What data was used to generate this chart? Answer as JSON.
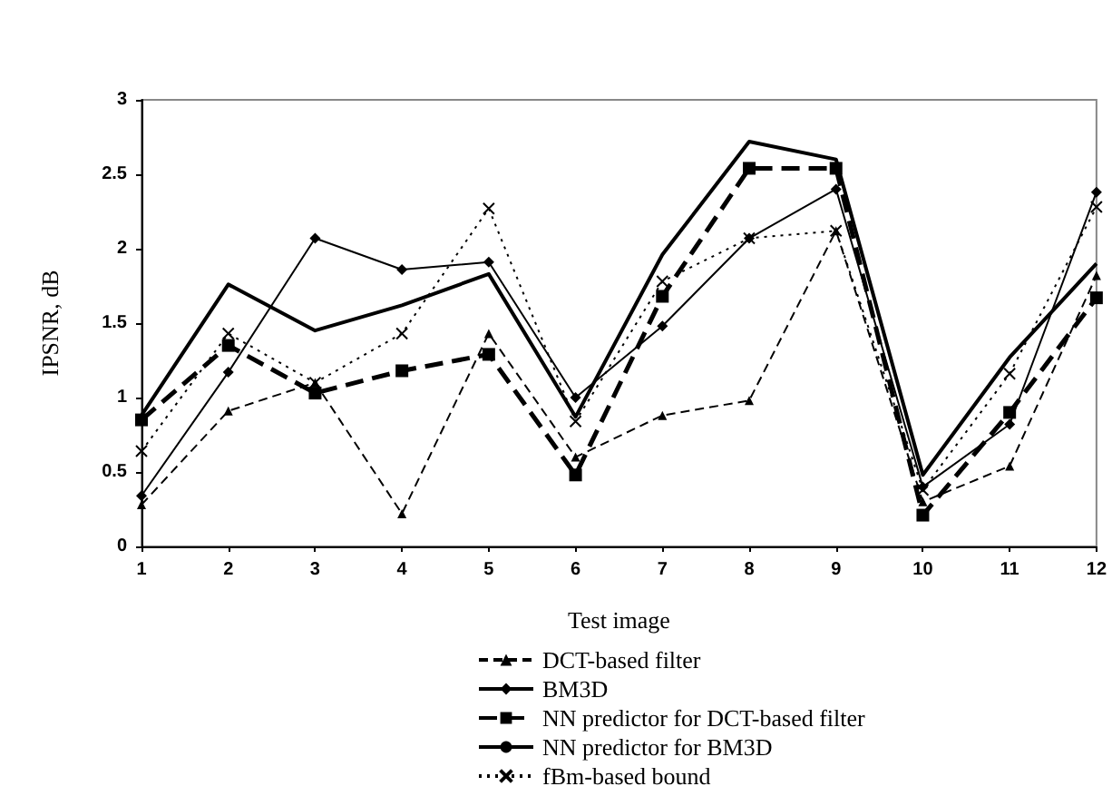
{
  "chart_data": {
    "type": "line",
    "xlabel": "Test image",
    "ylabel": "IPSNR, dB",
    "x": [
      1,
      2,
      3,
      4,
      5,
      6,
      7,
      8,
      9,
      10,
      11,
      12
    ],
    "xlim": [
      1,
      12
    ],
    "xticks": [
      1,
      2,
      3,
      4,
      5,
      6,
      7,
      8,
      9,
      10,
      11,
      12
    ],
    "ylim": [
      0,
      3
    ],
    "yticks": [
      0,
      0.5,
      1,
      1.5,
      2,
      2.5,
      3
    ],
    "grid": false,
    "legend": "bottom",
    "series": [
      {
        "name": "DCT-based filter",
        "color": "#000000",
        "marker": "triangle",
        "line_style": "dashed",
        "values": [
          0.28,
          0.91,
          1.1,
          0.22,
          1.43,
          0.6,
          0.88,
          0.98,
          2.12,
          0.3,
          0.54,
          1.82
        ]
      },
      {
        "name": "BM3D",
        "color": "#000000",
        "marker": "diamond",
        "line_style": "solid",
        "values": [
          0.34,
          1.17,
          2.07,
          1.86,
          1.91,
          1.0,
          1.48,
          2.07,
          2.4,
          0.4,
          0.82,
          2.38
        ]
      },
      {
        "name": "NN predictor for DCT-based filter",
        "color": "#000000",
        "marker": "square",
        "line_style": "dashed",
        "values": [
          0.85,
          1.35,
          1.03,
          1.18,
          1.29,
          0.48,
          1.68,
          2.54,
          2.54,
          0.21,
          0.9,
          1.67
        ]
      },
      {
        "name": "NN predictor for BM3D",
        "color": "#000000",
        "marker": "none",
        "line_style": "solid",
        "values": [
          0.88,
          1.76,
          1.45,
          1.62,
          1.83,
          0.87,
          1.96,
          2.72,
          2.6,
          0.48,
          1.27,
          1.9
        ]
      },
      {
        "name": "fBm-based bound",
        "color": "#000000",
        "marker": "cross",
        "line_style": "dotted",
        "values": [
          0.64,
          1.43,
          1.1,
          1.43,
          2.27,
          0.84,
          1.78,
          2.07,
          2.12,
          0.38,
          1.16,
          2.28
        ]
      }
    ]
  }
}
